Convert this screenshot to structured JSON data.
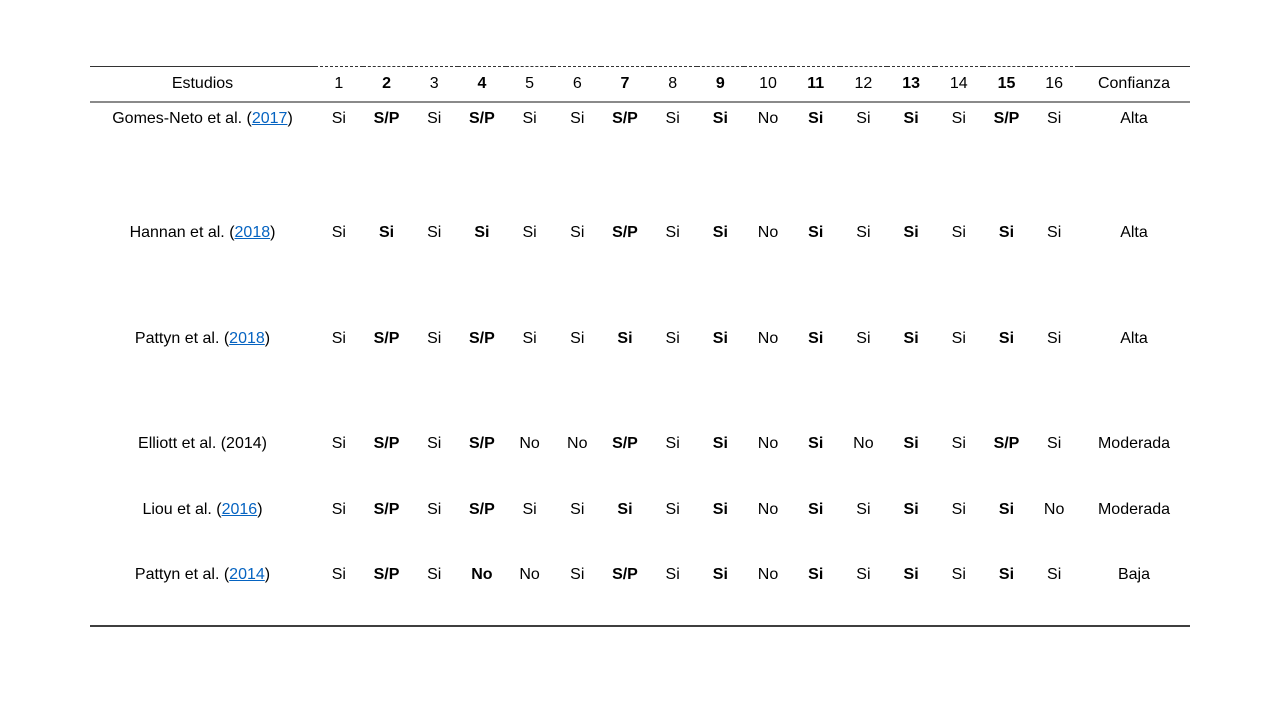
{
  "table": {
    "header": {
      "studies_label": "Estudios",
      "criteria": [
        "1",
        "2",
        "3",
        "4",
        "5",
        "6",
        "7",
        "8",
        "9",
        "10",
        "11",
        "12",
        "13",
        "14",
        "15",
        "16"
      ],
      "bold_criteria": [
        2,
        4,
        7,
        9,
        11,
        13,
        15
      ],
      "confidence_label": "Confianza"
    },
    "rows": [
      {
        "study_prefix": "Gomes-Neto et al. (",
        "year": "2017",
        "study_suffix": ")",
        "year_linked": true,
        "values": [
          "Si",
          "S/P",
          "Si",
          "S/P",
          "Si",
          "Si",
          "S/P",
          "Si",
          "Si",
          "No",
          "Si",
          "Si",
          "Si",
          "Si",
          "S/P",
          "Si"
        ],
        "confidence": "Alta"
      },
      {
        "study_prefix": "Hannan et al. (",
        "year": "2018",
        "study_suffix": ")",
        "year_linked": true,
        "values": [
          "Si",
          "Si",
          "Si",
          "Si",
          "Si",
          "Si",
          "S/P",
          "Si",
          "Si",
          "No",
          "Si",
          "Si",
          "Si",
          "Si",
          "Si",
          "Si"
        ],
        "confidence": "Alta"
      },
      {
        "study_prefix": "Pattyn et al. (",
        "year": "2018",
        "study_suffix": ")",
        "year_linked": true,
        "values": [
          "Si",
          "S/P",
          "Si",
          "S/P",
          "Si",
          "Si",
          "Si",
          "Si",
          "Si",
          "No",
          "Si",
          "Si",
          "Si",
          "Si",
          "Si",
          "Si"
        ],
        "confidence": "Alta"
      },
      {
        "study_prefix": "Elliott et al. (",
        "year": "2014",
        "study_suffix": ")",
        "year_linked": false,
        "values": [
          "Si",
          "S/P",
          "Si",
          "S/P",
          "No",
          "No",
          "S/P",
          "Si",
          "Si",
          "No",
          "Si",
          "No",
          "Si",
          "Si",
          "S/P",
          "Si"
        ],
        "confidence": "Moderada"
      },
      {
        "study_prefix": "Liou et al. (",
        "year": "2016",
        "study_suffix": ")",
        "year_linked": true,
        "values": [
          "Si",
          "S/P",
          "Si",
          "S/P",
          "Si",
          "Si",
          "Si",
          "Si",
          "Si",
          "No",
          "Si",
          "Si",
          "Si",
          "Si",
          "Si",
          "No"
        ],
        "confidence": "Moderada"
      },
      {
        "study_prefix": "Pattyn et al. (",
        "year": "2014",
        "study_suffix": ")",
        "year_linked": true,
        "values": [
          "Si",
          "S/P",
          "Si",
          "No",
          "No",
          "Si",
          "S/P",
          "Si",
          "Si",
          "No",
          "Si",
          "Si",
          "Si",
          "Si",
          "Si",
          "Si"
        ],
        "confidence": "Baja"
      }
    ]
  },
  "colors": {
    "link": "#0563C1",
    "header_rule": "#8a8a8a",
    "bottom_rule": "#3f3f3f",
    "rule_dark": "#333333",
    "text": "#000000"
  }
}
